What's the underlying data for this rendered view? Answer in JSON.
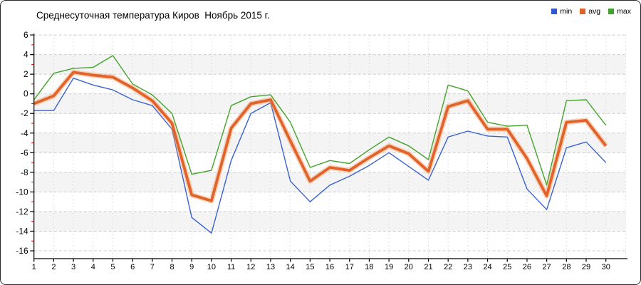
{
  "title": "Среднесуточная температура Киров  Ноябрь 2015 г.",
  "legend": {
    "items": [
      {
        "label": "min",
        "color": "#2F57CE"
      },
      {
        "label": "avg",
        "color": "#E2622B"
      },
      {
        "label": "max",
        "color": "#3FA32A"
      }
    ]
  },
  "chart_data": {
    "type": "line",
    "title": "Среднесуточная температура Киров  Ноябрь 2015 г.",
    "xlabel": "",
    "ylabel": "",
    "categories": [
      1,
      2,
      3,
      4,
      5,
      6,
      7,
      8,
      9,
      10,
      11,
      12,
      13,
      14,
      15,
      16,
      17,
      18,
      19,
      20,
      21,
      22,
      23,
      24,
      25,
      26,
      27,
      28,
      29,
      30
    ],
    "series": [
      {
        "name": "min",
        "color": "#3B62D0",
        "width": 1.4,
        "values": [
          -1.7,
          -1.7,
          1.6,
          0.9,
          0.4,
          -0.6,
          -1.2,
          -3.6,
          -12.6,
          -14.2,
          -6.8,
          -2.0,
          -0.9,
          -8.9,
          -11.0,
          -9.3,
          -8.4,
          -7.3,
          -6.0,
          -7.4,
          -8.8,
          -4.4,
          -3.8,
          -4.3,
          -4.4,
          -9.7,
          -11.8,
          -5.5,
          -4.9,
          -7.0
        ]
      },
      {
        "name": "avg",
        "color": "#E2622B",
        "width": 3.8,
        "halo": "#F2A36B",
        "values": [
          -1.0,
          -0.2,
          2.2,
          1.9,
          1.7,
          0.6,
          -0.7,
          -3.0,
          -10.3,
          -10.9,
          -3.5,
          -1.0,
          -0.6,
          -4.8,
          -8.9,
          -7.5,
          -7.8,
          -6.5,
          -5.3,
          -6.1,
          -7.9,
          -1.3,
          -0.7,
          -3.6,
          -3.6,
          -6.6,
          -10.4,
          -2.9,
          -2.7,
          -5.3
        ]
      },
      {
        "name": "max",
        "color": "#43A32A",
        "width": 1.4,
        "values": [
          -0.6,
          2.1,
          2.6,
          2.7,
          3.9,
          1.0,
          -0.1,
          -2.0,
          -8.2,
          -7.8,
          -1.2,
          -0.3,
          -0.1,
          -2.9,
          -7.5,
          -6.8,
          -7.1,
          -5.7,
          -4.4,
          -5.3,
          -6.7,
          0.9,
          0.3,
          -2.9,
          -3.3,
          -3.2,
          -9.3,
          -0.7,
          -0.6,
          -3.2
        ]
      }
    ],
    "ylim": [
      -16,
      6
    ],
    "yticks": [
      6,
      4,
      2,
      0,
      -2,
      -4,
      -6,
      -8,
      -10,
      -12,
      -14,
      -16
    ],
    "grid": true,
    "grid_style": "dashed",
    "legend_position": "top-right",
    "band_color": "#F4F4F4",
    "grid_color": "#CBCBCB",
    "axis_color": "#000000",
    "minor_tick_color": "#D40000",
    "text_color": "#000000"
  }
}
